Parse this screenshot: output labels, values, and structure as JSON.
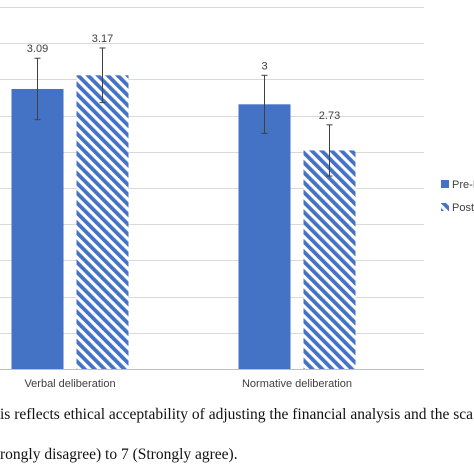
{
  "chart_data": {
    "type": "bar",
    "categories": [
      "Verbal deliberation",
      "Normative deliberation"
    ],
    "series": [
      {
        "name": "Pre-I",
        "values": [
          3.09,
          3
        ],
        "error": [
          0.18,
          0.17
        ],
        "color": "#4472C4",
        "fill": "solid"
      },
      {
        "name": "Post",
        "values": [
          3.17,
          2.73
        ],
        "error": [
          0.16,
          0.15
        ],
        "color": "#4472C4",
        "fill": "diagonal-stripes"
      }
    ],
    "data_labels": [
      [
        "3.09",
        "3.17"
      ],
      [
        "3",
        "2.73"
      ]
    ],
    "ylim": [
      1.45,
      3.57
    ],
    "grid": true,
    "legend_position": "right"
  },
  "caption": {
    "line1": "is reflects ethical acceptability of adjusting the financial analysis and the sca",
    "line2": "rongly disagree) to 7 (Strongly agree)."
  }
}
